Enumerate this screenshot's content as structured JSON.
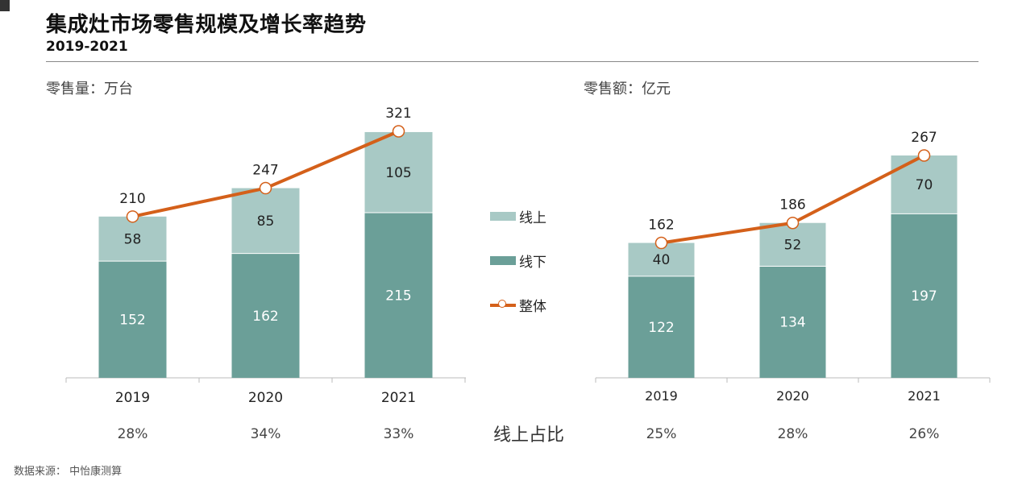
{
  "title": "集成灶市场零售规模及增长率趋势",
  "subtitle": "2019-2021",
  "source": "数据来源： 中怡康测算",
  "share_label": "线上占比",
  "colors": {
    "online": "#a8c9c5",
    "offline": "#6b9f98",
    "line": "#d4601a",
    "axis": "#bbbbbb"
  },
  "legend": {
    "online": "线上",
    "offline": "线下",
    "total": "整体"
  },
  "chart_data": [
    {
      "type": "bar",
      "stacked": true,
      "unit_label": "零售量：万台",
      "categories": [
        "2019",
        "2020",
        "2021"
      ],
      "series": [
        {
          "name": "线下",
          "values": [
            152,
            162,
            215
          ]
        },
        {
          "name": "线上",
          "values": [
            58,
            85,
            105
          ]
        },
        {
          "name": "整体",
          "type": "line",
          "values": [
            210,
            247,
            321
          ]
        }
      ],
      "online_share": [
        "28%",
        "34%",
        "33%"
      ],
      "ylim": [
        0,
        321
      ]
    },
    {
      "type": "bar",
      "stacked": true,
      "unit_label": "零售额：亿元",
      "categories": [
        "2019",
        "2020",
        "2021"
      ],
      "series": [
        {
          "name": "线下",
          "values": [
            122,
            134,
            197
          ]
        },
        {
          "name": "线上",
          "values": [
            40,
            52,
            70
          ]
        },
        {
          "name": "整体",
          "type": "line",
          "values": [
            162,
            186,
            267
          ]
        }
      ],
      "online_share": [
        "25%",
        "28%",
        "26%"
      ],
      "ylim": [
        0,
        267
      ]
    }
  ]
}
